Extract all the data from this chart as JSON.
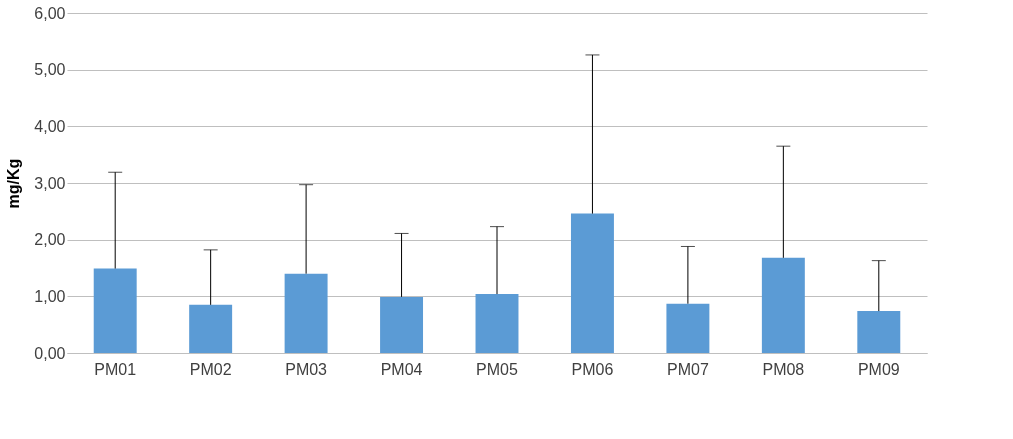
{
  "chart_data": {
    "type": "bar",
    "ylabel": "mg/Kg",
    "categories": [
      "PM01",
      "PM02",
      "PM03",
      "PM04",
      "PM05",
      "PM06",
      "PM07",
      "PM08",
      "PM09"
    ],
    "values": [
      1.49,
      0.85,
      1.4,
      0.99,
      1.04,
      2.46,
      0.87,
      1.68,
      0.74
    ],
    "errors": [
      [
        1.49,
        3.19
      ],
      [
        0.85,
        1.82
      ],
      [
        1.4,
        2.97
      ],
      [
        0.99,
        2.11
      ],
      [
        1.04,
        2.23
      ],
      [
        2.46,
        5.26
      ],
      [
        0.87,
        1.88
      ],
      [
        1.68,
        3.65
      ],
      [
        0.74,
        1.63
      ]
    ],
    "color": "#5b9bd5",
    "ylim": [
      0,
      6
    ],
    "yticks": [
      {
        "value": 0,
        "label": "0,00"
      },
      {
        "value": 1,
        "label": "1,00"
      },
      {
        "value": 2,
        "label": "2,00"
      },
      {
        "value": 3,
        "label": "3,00"
      },
      {
        "value": 4,
        "label": "4,00"
      },
      {
        "value": 5,
        "label": "5,00"
      },
      {
        "value": 6,
        "label": "6,00"
      }
    ],
    "grid": "y"
  }
}
